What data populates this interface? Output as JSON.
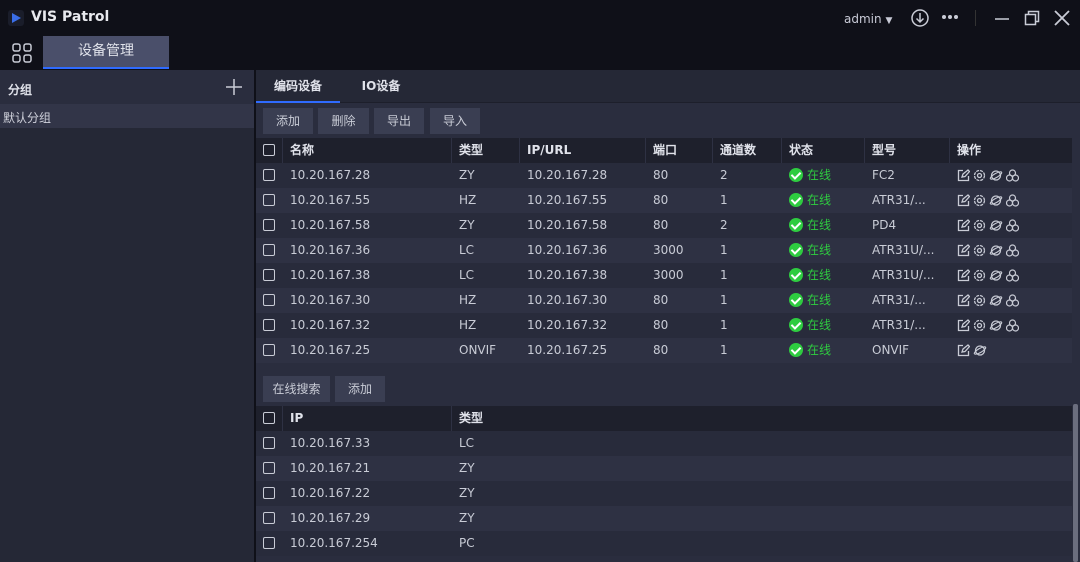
{
  "app": {
    "title": "VIS Patrol",
    "user": "admin"
  },
  "main_tab": "设备管理",
  "sidebar": {
    "header": "分组",
    "items": [
      "默认分组"
    ]
  },
  "sub_tabs": [
    "编码设备",
    "IO设备"
  ],
  "toolbar": [
    "添加",
    "删除",
    "导出",
    "导入"
  ],
  "devices": {
    "columns": [
      "名称",
      "类型",
      "IP/URL",
      "端口",
      "通道数",
      "状态",
      "型号",
      "操作"
    ],
    "rows": [
      [
        "10.20.167.28",
        "ZY",
        "10.20.167.28",
        "80",
        "2",
        "在线",
        "FC2",
        4
      ],
      [
        "10.20.167.55",
        "HZ",
        "10.20.167.55",
        "80",
        "1",
        "在线",
        "ATR31/...",
        4
      ],
      [
        "10.20.167.58",
        "ZY",
        "10.20.167.58",
        "80",
        "2",
        "在线",
        "PD4",
        4
      ],
      [
        "10.20.167.36",
        "LC",
        "10.20.167.36",
        "3000",
        "1",
        "在线",
        "ATR31U/...",
        4
      ],
      [
        "10.20.167.38",
        "LC",
        "10.20.167.38",
        "3000",
        "1",
        "在线",
        "ATR31U/...",
        4
      ],
      [
        "10.20.167.30",
        "HZ",
        "10.20.167.30",
        "80",
        "1",
        "在线",
        "ATR31/...",
        4
      ],
      [
        "10.20.167.32",
        "HZ",
        "10.20.167.32",
        "80",
        "1",
        "在线",
        "ATR31/...",
        4
      ],
      [
        "10.20.167.25",
        "ONVIF",
        "10.20.167.25",
        "80",
        "1",
        "在线",
        "ONVIF",
        2
      ]
    ]
  },
  "search_toolbar": [
    "在线搜索",
    "添加"
  ],
  "search": {
    "columns": [
      "IP",
      "类型"
    ],
    "rows": [
      [
        "10.20.167.33",
        "LC"
      ],
      [
        "10.20.167.21",
        "ZY"
      ],
      [
        "10.20.167.22",
        "ZY"
      ],
      [
        "10.20.167.29",
        "ZY"
      ],
      [
        "10.20.167.254",
        "PC"
      ]
    ]
  },
  "colors": {
    "accent": "#2f6bff",
    "online": "#2ecc40"
  }
}
